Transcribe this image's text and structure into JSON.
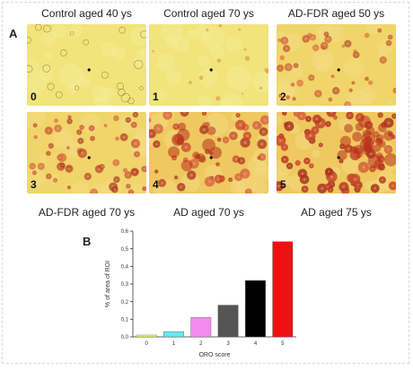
{
  "panel_a_label": "A",
  "panel_b_label": "B",
  "micrographs": [
    {
      "caption": "Control aged 40 ys",
      "score": "0",
      "level": 0
    },
    {
      "caption": "Control aged 70 ys",
      "score": "1",
      "level": 1
    },
    {
      "caption": "AD-FDR aged 50 ys",
      "score": "2",
      "level": 2
    },
    {
      "caption": "AD-FDR aged 70 ys",
      "score": "3",
      "level": 3
    },
    {
      "caption": "AD aged 70 ys",
      "score": "4",
      "level": 4
    },
    {
      "caption": "AD aged 75 ys",
      "score": "5",
      "level": 5
    }
  ],
  "chart_data": {
    "type": "bar",
    "categories": [
      "0",
      "1",
      "2",
      "3",
      "4",
      "5"
    ],
    "values": [
      0.01,
      0.03,
      0.11,
      0.18,
      0.32,
      0.54
    ],
    "colors": [
      "#ffff66",
      "#66e8f0",
      "#f48cf0",
      "#555555",
      "#000000",
      "#ee1111"
    ],
    "xlabel": "ORO score",
    "ylabel": "% of area of ROI",
    "ylim": [
      0,
      0.6
    ],
    "yticks": [
      "0,0",
      "0,1",
      "0,2",
      "0,3",
      "0,4",
      "0,5",
      "0,6"
    ],
    "grid": false
  }
}
